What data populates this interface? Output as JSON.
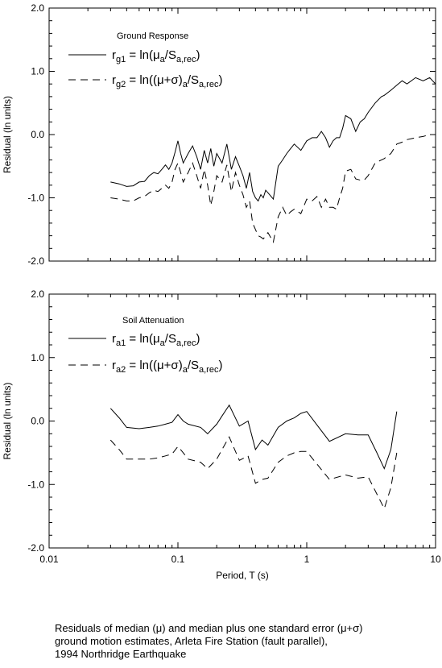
{
  "chart_data": [
    {
      "type": "line",
      "panel": "top",
      "xscale": "log",
      "xlim": [
        0.01,
        10
      ],
      "ylim": [
        -2.0,
        2.0
      ],
      "ylabel": "Residual (ln units)",
      "xlabel": "",
      "x_tick_labels": [],
      "y_tick_labels": [
        "2.0",
        "1.0",
        "0.0",
        "-1.0",
        "-2.0"
      ],
      "legend_title": "Ground Response",
      "legend_placement": "top-left",
      "series": [
        {
          "name": "rg1 = ln(μa/Sa,rec)",
          "label_parts": {
            "pre": "r",
            "sub1": "g1",
            "mid": " = ln(",
            "greek": "μ",
            "sub2": "a",
            "mid2": "/S",
            "sub3": "a,rec",
            "post": ")"
          },
          "style": "solid",
          "x": [
            0.03,
            0.035,
            0.04,
            0.045,
            0.05,
            0.055,
            0.06,
            0.065,
            0.07,
            0.075,
            0.08,
            0.085,
            0.09,
            0.095,
            0.1,
            0.105,
            0.11,
            0.12,
            0.13,
            0.14,
            0.15,
            0.16,
            0.17,
            0.18,
            0.19,
            0.2,
            0.22,
            0.24,
            0.26,
            0.28,
            0.3,
            0.32,
            0.34,
            0.36,
            0.38,
            0.4,
            0.42,
            0.44,
            0.46,
            0.48,
            0.5,
            0.55,
            0.6,
            0.65,
            0.7,
            0.75,
            0.8,
            0.9,
            1.0,
            1.1,
            1.2,
            1.3,
            1.4,
            1.5,
            1.6,
            1.7,
            1.8,
            1.9,
            2.0,
            2.2,
            2.4,
            2.6,
            2.8,
            3.0,
            3.4,
            3.8,
            4.0,
            4.5,
            5.0,
            5.5,
            6.0,
            7.0,
            8.0,
            9.0,
            10.0
          ],
          "y": [
            -0.75,
            -0.78,
            -0.82,
            -0.81,
            -0.75,
            -0.74,
            -0.65,
            -0.6,
            -0.62,
            -0.55,
            -0.48,
            -0.55,
            -0.45,
            -0.28,
            -0.1,
            -0.3,
            -0.45,
            -0.3,
            -0.18,
            -0.35,
            -0.55,
            -0.25,
            -0.45,
            -0.22,
            -0.5,
            -0.3,
            -0.45,
            -0.15,
            -0.55,
            -0.35,
            -0.5,
            -0.65,
            -0.85,
            -0.6,
            -0.9,
            -1.0,
            -1.05,
            -0.95,
            -1.0,
            -0.88,
            -0.92,
            -1.02,
            -0.5,
            -0.4,
            -0.3,
            -0.22,
            -0.15,
            -0.25,
            -0.1,
            -0.05,
            -0.05,
            0.05,
            -0.05,
            -0.2,
            -0.1,
            -0.05,
            -0.05,
            0.1,
            0.3,
            0.25,
            0.05,
            0.2,
            0.25,
            0.35,
            0.5,
            0.6,
            0.62,
            0.7,
            0.78,
            0.85,
            0.8,
            0.9,
            0.85,
            0.9,
            0.8
          ]
        },
        {
          "name": "rg2 = ln((μ+σ)a/Sa,rec)",
          "label_parts": {
            "pre": "r",
            "sub1": "g2",
            "mid": " = ln((",
            "greek": "μ+σ",
            "mid1": ")",
            "sub2": "a",
            "mid2": "/S",
            "sub3": "a,rec",
            "post": ")"
          },
          "style": "dashed",
          "x": [
            0.03,
            0.035,
            0.04,
            0.045,
            0.05,
            0.055,
            0.06,
            0.065,
            0.07,
            0.075,
            0.08,
            0.085,
            0.09,
            0.095,
            0.1,
            0.105,
            0.11,
            0.12,
            0.13,
            0.14,
            0.15,
            0.16,
            0.17,
            0.18,
            0.19,
            0.2,
            0.22,
            0.24,
            0.26,
            0.28,
            0.3,
            0.32,
            0.34,
            0.36,
            0.38,
            0.4,
            0.42,
            0.44,
            0.46,
            0.48,
            0.5,
            0.55,
            0.6,
            0.65,
            0.7,
            0.75,
            0.8,
            0.9,
            1.0,
            1.1,
            1.2,
            1.3,
            1.4,
            1.5,
            1.6,
            1.7,
            1.8,
            1.9,
            2.0,
            2.2,
            2.4,
            2.6,
            2.8,
            3.0,
            3.4,
            3.8,
            4.0,
            4.5,
            5.0,
            5.5,
            6.0,
            7.0,
            8.0,
            9.0,
            10.0
          ],
          "y": [
            -1.0,
            -1.02,
            -1.05,
            -1.05,
            -1.0,
            -0.98,
            -0.92,
            -0.88,
            -0.9,
            -0.85,
            -0.8,
            -0.85,
            -0.75,
            -0.55,
            -0.45,
            -0.6,
            -0.75,
            -0.6,
            -0.45,
            -0.65,
            -0.85,
            -0.55,
            -0.8,
            -1.12,
            -0.9,
            -0.65,
            -0.75,
            -0.48,
            -0.9,
            -0.6,
            -0.8,
            -0.95,
            -1.15,
            -1.05,
            -1.4,
            -1.5,
            -1.6,
            -1.62,
            -1.65,
            -1.6,
            -1.55,
            -1.7,
            -1.3,
            -1.15,
            -1.28,
            -1.22,
            -1.18,
            -1.25,
            -1.02,
            -1.05,
            -0.98,
            -1.15,
            -1.02,
            -1.15,
            -1.15,
            -1.18,
            -1.0,
            -0.85,
            -0.58,
            -0.55,
            -0.7,
            -0.72,
            -0.72,
            -0.65,
            -0.45,
            -0.4,
            -0.38,
            -0.3,
            -0.15,
            -0.12,
            -0.08,
            -0.05,
            -0.03,
            0.0,
            0.0
          ]
        }
      ]
    },
    {
      "type": "line",
      "panel": "bottom",
      "xscale": "log",
      "xlim": [
        0.01,
        10
      ],
      "ylim": [
        -2.0,
        2.0
      ],
      "ylabel": "Residual (ln units)",
      "xlabel": "Period, T (s)",
      "x_tick_labels": [
        "0.01",
        "0.1",
        "1",
        "10"
      ],
      "y_tick_labels": [
        "2.0",
        "1.0",
        "0.0",
        "-1.0",
        "-2.0"
      ],
      "legend_title": "Soil Attenuation",
      "legend_placement": "top-left",
      "series": [
        {
          "name": "ra1 = ln(μa/Sa,rec)",
          "label_parts": {
            "pre": "r",
            "sub1": "a1",
            "mid": " = ln(",
            "greek": "μ",
            "sub2": "a",
            "mid2": "/S",
            "sub3": "a,rec",
            "post": ")"
          },
          "style": "solid",
          "x": [
            0.03,
            0.035,
            0.04,
            0.05,
            0.06,
            0.07,
            0.08,
            0.09,
            0.1,
            0.11,
            0.12,
            0.15,
            0.17,
            0.2,
            0.22,
            0.25,
            0.3,
            0.35,
            0.4,
            0.45,
            0.5,
            0.6,
            0.7,
            0.8,
            0.9,
            1.0,
            1.5,
            2.0,
            2.5,
            3.0,
            3.5,
            4.0,
            4.5,
            5.0
          ],
          "y": [
            0.2,
            0.05,
            -0.1,
            -0.12,
            -0.1,
            -0.08,
            -0.05,
            -0.02,
            0.1,
            0.0,
            -0.05,
            -0.1,
            -0.2,
            -0.05,
            0.08,
            0.25,
            -0.08,
            0.0,
            -0.45,
            -0.3,
            -0.38,
            -0.1,
            0.0,
            0.05,
            0.12,
            0.15,
            -0.32,
            -0.2,
            -0.22,
            -0.22,
            -0.5,
            -0.75,
            -0.45,
            0.15
          ]
        },
        {
          "name": "ra2 = ln((μ+σ)a/Sa,rec)",
          "label_parts": {
            "pre": "r",
            "sub1": "a2",
            "mid": " = ln((",
            "greek": "μ+σ",
            "mid1": ")",
            "sub2": "a",
            "mid2": "/S",
            "sub3": "a,rec",
            "post": ")"
          },
          "style": "dashed",
          "x": [
            0.03,
            0.035,
            0.04,
            0.05,
            0.06,
            0.07,
            0.08,
            0.09,
            0.1,
            0.11,
            0.12,
            0.15,
            0.17,
            0.2,
            0.22,
            0.25,
            0.3,
            0.35,
            0.4,
            0.45,
            0.5,
            0.6,
            0.7,
            0.8,
            0.9,
            1.0,
            1.5,
            2.0,
            2.5,
            3.0,
            3.5,
            4.0,
            4.5,
            5.0
          ],
          "y": [
            -0.3,
            -0.45,
            -0.6,
            -0.6,
            -0.6,
            -0.58,
            -0.55,
            -0.52,
            -0.4,
            -0.5,
            -0.6,
            -0.65,
            -0.75,
            -0.6,
            -0.45,
            -0.25,
            -0.62,
            -0.55,
            -0.98,
            -0.92,
            -0.9,
            -0.65,
            -0.55,
            -0.5,
            -0.48,
            -0.48,
            -0.92,
            -0.85,
            -0.9,
            -0.88,
            -1.15,
            -1.38,
            -1.05,
            -0.5
          ]
        }
      ]
    }
  ],
  "caption": {
    "line1": "Residuals of median (μ) and median plus one standard error (μ+σ)",
    "line2": "ground motion estimates, Arleta Fire Station (fault parallel),",
    "line3": "1994 Northridge Earthquake"
  }
}
